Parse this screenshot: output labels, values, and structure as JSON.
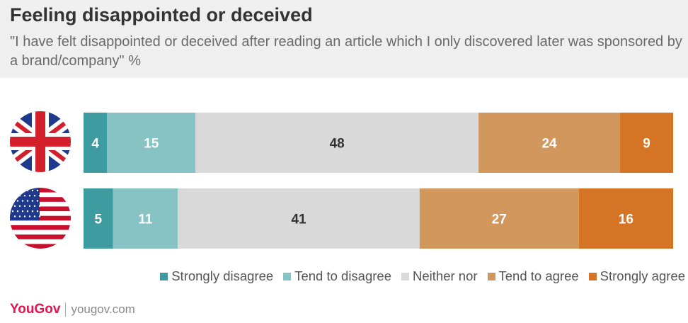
{
  "header": {
    "title": "Feeling disappointed or deceived",
    "subtitle": "\"I have felt disappointed or deceived after reading an article which I only discovered later was sponsored by a brand/company\" %"
  },
  "chart_data": {
    "type": "bar",
    "orientation": "horizontal",
    "stacked": true,
    "categories": [
      "United Kingdom",
      "United States"
    ],
    "category_display": "flag icons",
    "series": [
      {
        "name": "Strongly disagree",
        "values": [
          4,
          5
        ],
        "color": "#3e9ba0"
      },
      {
        "name": "Tend to disagree",
        "values": [
          15,
          11
        ],
        "color": "#87c3c5"
      },
      {
        "name": "Neither nor",
        "values": [
          48,
          41
        ],
        "color": "#d9d9d9"
      },
      {
        "name": "Tend to agree",
        "values": [
          24,
          27
        ],
        "color": "#d2975c"
      },
      {
        "name": "Strongly agree",
        "values": [
          9,
          16
        ],
        "color": "#d57425"
      }
    ],
    "grid": false,
    "legend_position": "bottom-right"
  },
  "flags": [
    {
      "icon": "uk-flag-icon"
    },
    {
      "icon": "us-flag-icon"
    }
  ],
  "footer": {
    "brand": "YouGov",
    "url": "yougov.com"
  }
}
